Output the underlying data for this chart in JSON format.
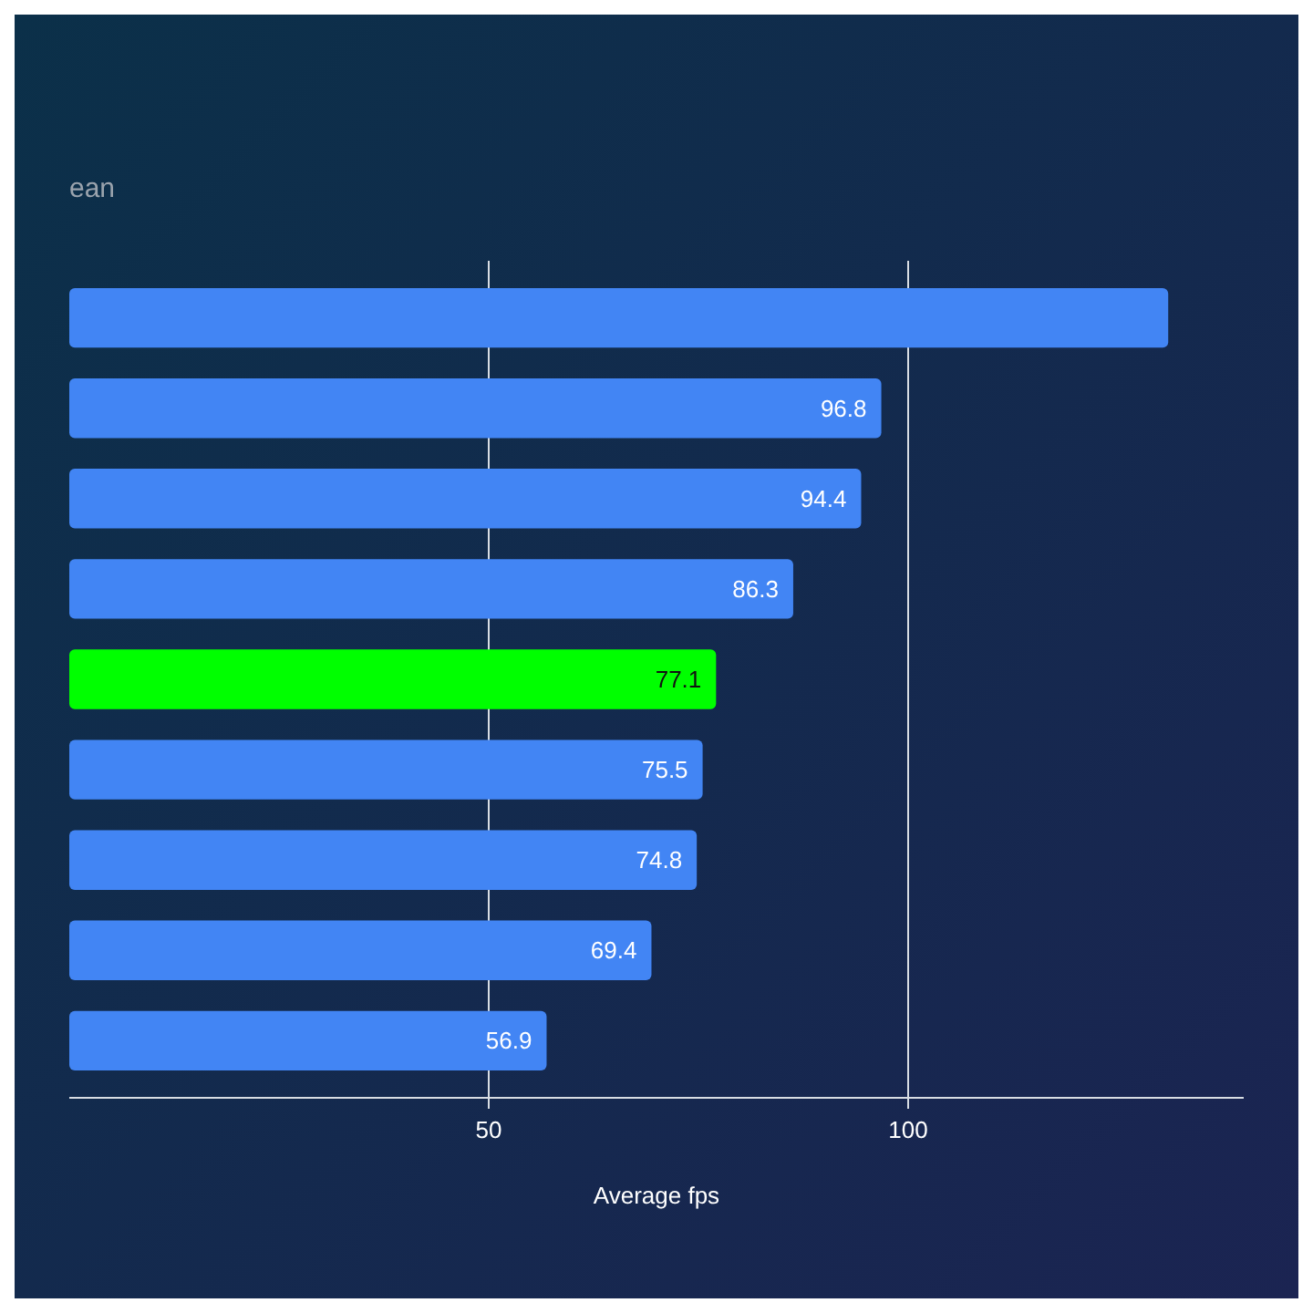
{
  "chart_data": {
    "type": "bar",
    "orientation": "horizontal",
    "subtitle": "ean",
    "xlabel": "Average fps",
    "categories": [
      null,
      null,
      null,
      null,
      null,
      null,
      null,
      null,
      null
    ],
    "values": [
      131,
      96.8,
      94.4,
      86.3,
      77.1,
      75.5,
      74.8,
      69.4,
      56.9
    ],
    "colors": [
      "#4285f4",
      "#4285f4",
      "#4285f4",
      "#4285f4",
      "#00ff00",
      "#4285f4",
      "#4285f4",
      "#4285f4",
      "#4285f4"
    ],
    "value_labels": [
      null,
      "96.8",
      "94.4",
      "86.3",
      "77.1",
      "75.5",
      "74.8",
      "69.4",
      "56.9"
    ],
    "xlim": [
      0,
      140
    ],
    "xticks": [
      50,
      100
    ],
    "grid": "x"
  }
}
